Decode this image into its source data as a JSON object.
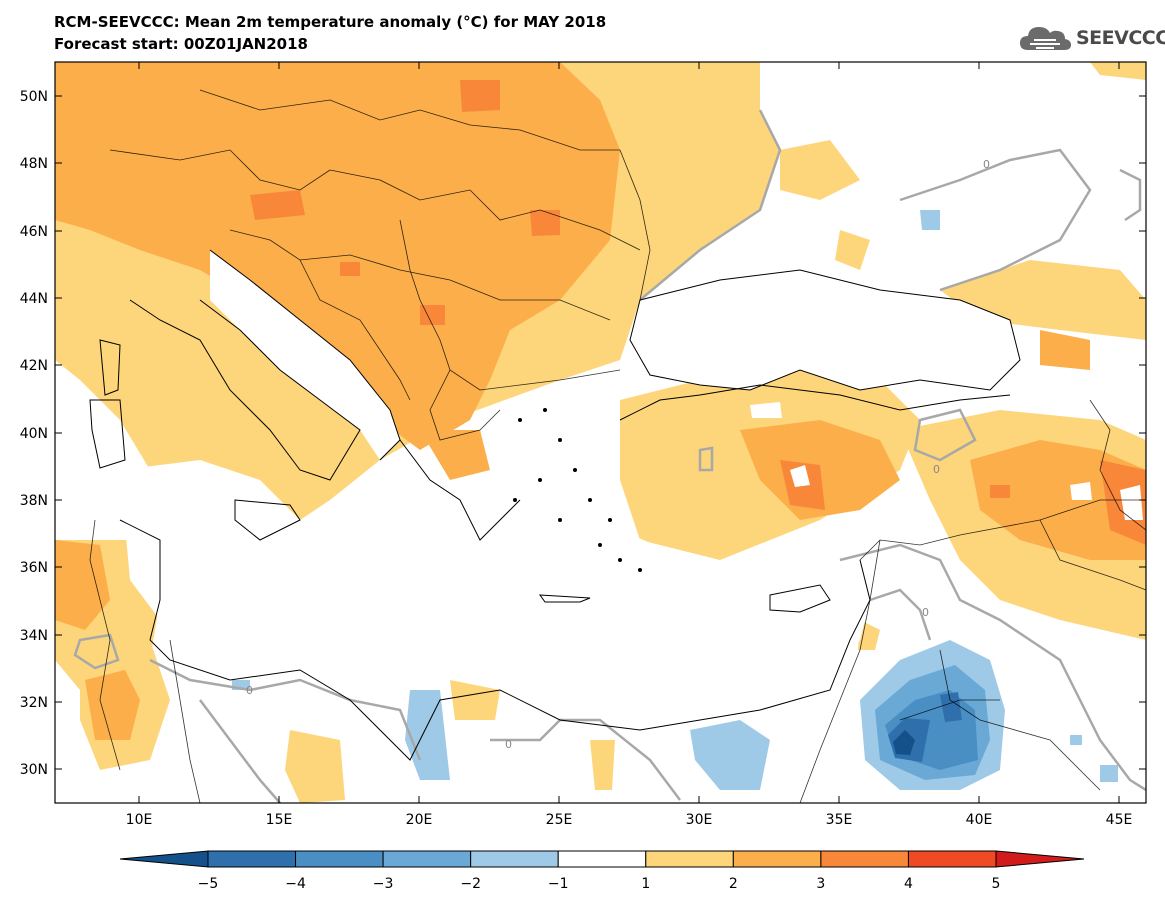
{
  "header": {
    "title": "RCM-SEEVCCC: Mean 2m temperature anomaly (°C) for MAY 2018",
    "subtitle": "Forecast start: 00Z01JAN2018"
  },
  "logo": {
    "text": "SEEVCCC",
    "icon": "cloud-icon"
  },
  "map": {
    "lon_range": [
      7,
      46
    ],
    "lat_range": [
      29,
      51
    ],
    "lat_ticks": [
      "50N",
      "48N",
      "46N",
      "44N",
      "42N",
      "40N",
      "38N",
      "36N",
      "34N",
      "32N",
      "30N"
    ],
    "lon_ticks": [
      "10E",
      "15E",
      "20E",
      "25E",
      "30E",
      "35E",
      "40E",
      "45E"
    ],
    "contour_label": "0"
  },
  "colorbar": {
    "labels": [
      "−5",
      "−4",
      "−3",
      "−2",
      "−1",
      "1",
      "2",
      "3",
      "4",
      "5"
    ],
    "colors": [
      "#14508a",
      "#2e6fac",
      "#4a8fc4",
      "#6aa9d6",
      "#9ecae8",
      "#ffffff",
      "#fdd57a",
      "#fbae4a",
      "#f8873a",
      "#f04a25",
      "#d21b1b"
    ]
  }
}
